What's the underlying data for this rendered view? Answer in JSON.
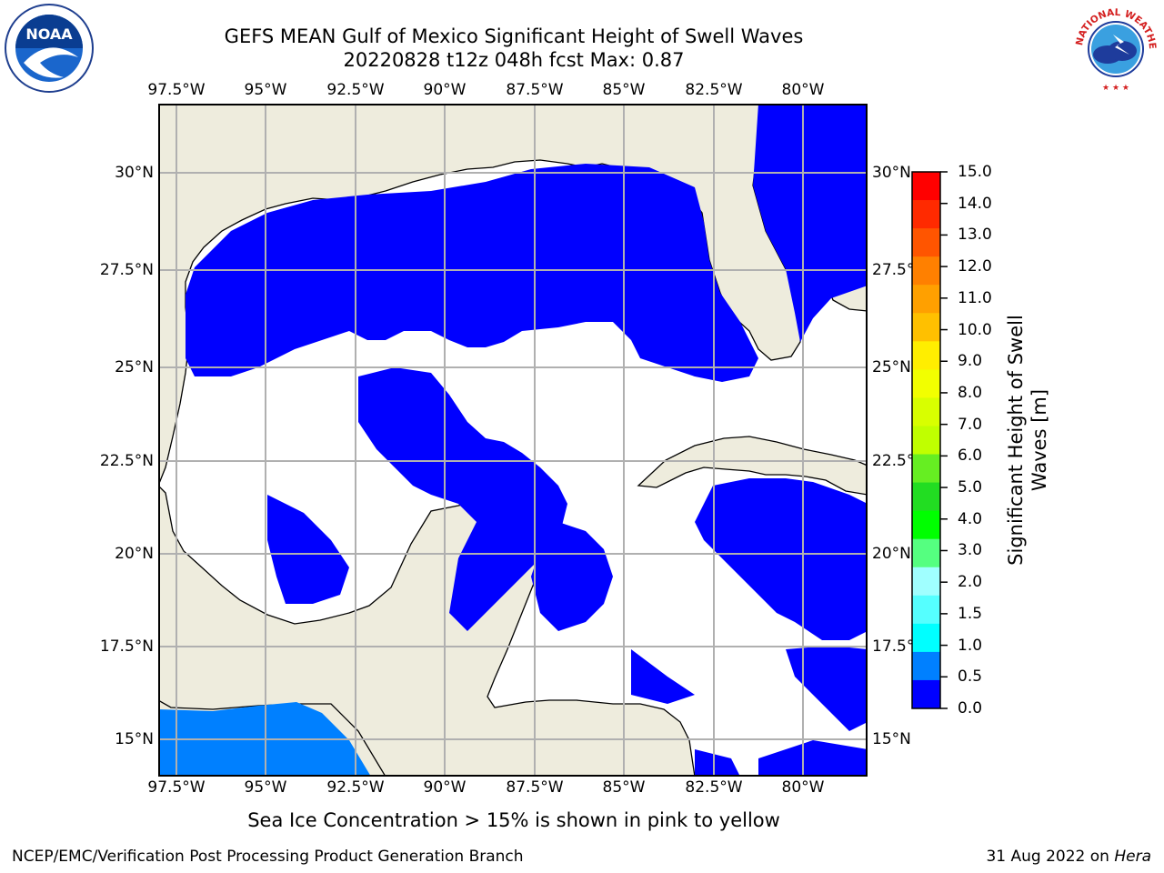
{
  "header": {
    "title_line1": "GEFS MEAN Gulf of Mexico Significant Height of Swell Waves",
    "title_line2": "20220828 t12z 048h fcst   Max: 0.87"
  },
  "map": {
    "lon_labels": [
      "97.5°W",
      "95°W",
      "92.5°W",
      "90°W",
      "87.5°W",
      "85°W",
      "82.5°W",
      "80°W"
    ],
    "lat_labels_left": [
      "30°N",
      "27.5°N",
      "25°N",
      "22.5°N",
      "20°N",
      "17.5°N",
      "15°N"
    ],
    "lat_labels_right": [
      "30°N",
      "27.5°N",
      "25°N",
      "22.5°N",
      "20°N",
      "17.5°N",
      "15°N"
    ],
    "colors": {
      "land": "#eeecdd",
      "swell_0_05": "#0000ff",
      "swell_05_10": "#0080ff",
      "ocean_masked": "#ffffff",
      "grid": "#b0b0b0"
    }
  },
  "colorbar": {
    "label": "Significant Height of Swell Waves [m]",
    "ticks": [
      "15.0",
      "14.0",
      "13.0",
      "12.0",
      "11.0",
      "10.0",
      "9.0",
      "8.0",
      "7.0",
      "6.0",
      "5.0",
      "4.0",
      "3.0",
      "2.0",
      "1.5",
      "1.0",
      "0.5",
      "0.0"
    ],
    "colors_top_to_bottom": [
      "#ff0000",
      "#ff2a00",
      "#ff5500",
      "#ff8000",
      "#ffa000",
      "#ffc000",
      "#ffee00",
      "#f2ff00",
      "#d8ff00",
      "#c0ff00",
      "#66ee22",
      "#22dd22",
      "#00ff00",
      "#55ff80",
      "#a0ffff",
      "#55ffff",
      "#00ffff",
      "#0080ff",
      "#0000ff"
    ]
  },
  "footer": {
    "note": "Sea Ice Concentration > 15% is shown in pink to yellow",
    "credit": "NCEP/EMC/Verification Post Processing Product Generation Branch",
    "date": "31 Aug 2022 on",
    "machine": "Hera"
  },
  "logos": {
    "left": "NOAA",
    "right": "NATIONAL WEATHER SERVICE"
  }
}
